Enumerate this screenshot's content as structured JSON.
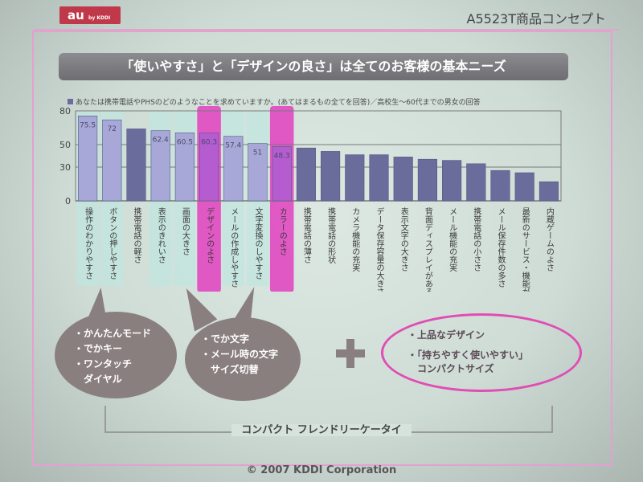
{
  "header": {
    "logo_text": "au",
    "logo_sub": "by KDDI",
    "slide_title": "A5523T商品コンセプト"
  },
  "headline": "「使いやすさ」と「デザインの良さ」は全てのお客様の基本ニーズ",
  "question": "あなたは携帯電話やPHSのどのようなことを求めていますか。(あてはまるもの全てを回答)／高校生～60代までの男女の回答",
  "colors": {
    "bar_light": "#a8a8d8",
    "bar_dark": "#6a6c9c",
    "highlight_pink": "#e040c0",
    "highlight_cyan": "#bfe6e0",
    "bubble": "#8a7f7f",
    "oval_border": "#e04db3"
  },
  "chart_data": {
    "type": "bar",
    "ylim": [
      0,
      80
    ],
    "yticks": [
      0,
      30,
      50,
      80
    ],
    "grid": true,
    "categories": [
      "操作のわかりやすさ",
      "ボタンの押しやすさ",
      "携帯電話の軽さ",
      "表示のきれいさ",
      "画面の大きさ",
      "デザインのよさ",
      "メールの作成しやすさ",
      "文字変換のしやすさ",
      "カラーのよさ",
      "携帯電話の薄さ",
      "携帯電話の形状",
      "カメラ機能の充実",
      "データ保存容量の大きさ",
      "表示文字の大きさ",
      "背面ディスプレイがあること",
      "メール機能の充実",
      "携帯電話の小ささ",
      "メール保存件数の多さ",
      "最新のサービス・機能がついている",
      "内蔵ゲームのよさ"
    ],
    "values": [
      75.5,
      72,
      64,
      62.4,
      60.5,
      60.3,
      57.4,
      51,
      48.3,
      47,
      44,
      41,
      41,
      39,
      37,
      36,
      33,
      27,
      25,
      17
    ],
    "value_labels": [
      "75.5",
      "72",
      "",
      "62.4",
      "60.5",
      "60.3",
      "57.4",
      "51",
      "48.3",
      "",
      "",
      "",
      "",
      "",
      "",
      "",
      "",
      "",
      "",
      ""
    ],
    "bar_tone": [
      "light",
      "light",
      "dark",
      "light",
      "light",
      "pink",
      "light",
      "light",
      "pink",
      "dark",
      "dark",
      "dark",
      "dark",
      "dark",
      "dark",
      "dark",
      "dark",
      "dark",
      "dark",
      "dark"
    ],
    "highlight_pink": [
      5,
      8
    ],
    "highlight_cyan": [
      0,
      1,
      3,
      4,
      6,
      7
    ]
  },
  "bubbles": {
    "left": [
      "・かんたんモード",
      "・でかキー",
      "・ワンタッチ",
      "　ダイヤル"
    ],
    "middle": [
      "・でか文字",
      "・メール時の文字",
      "　サイズ切替"
    ]
  },
  "oval": {
    "line1": "・上品なデザイン",
    "line2": "・「持ちやすく使いやすい」",
    "line3": "　コンパクトサイズ"
  },
  "tagline": "コンパクト フレンドリーケータイ",
  "footer": "© 2007 KDDI Corporation"
}
